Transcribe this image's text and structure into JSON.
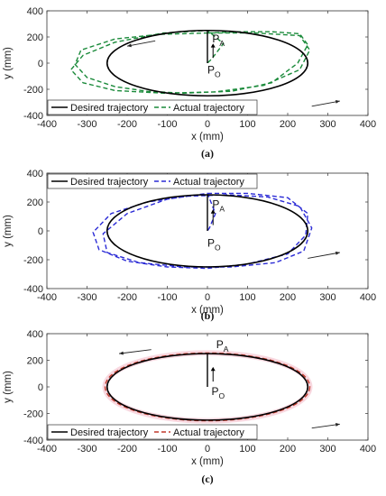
{
  "chart_data": [
    {
      "type": "line",
      "panel": "a",
      "caption": "(a)",
      "xlabel": "x (mm)",
      "ylabel": "y (mm)",
      "xlim": [
        -400,
        400
      ],
      "ylim": [
        -400,
        400
      ],
      "xticks": [
        -400,
        -300,
        -200,
        -100,
        0,
        100,
        200,
        300,
        400
      ],
      "yticks": [
        -400,
        -200,
        0,
        200,
        400
      ],
      "grid": false,
      "legend_position": "bottom",
      "legend": [
        "Desired trajectory",
        "Actual trajectory"
      ],
      "series": [
        {
          "name": "Desired trajectory",
          "color": "#000000",
          "style": "solid",
          "shape": "ellipse",
          "cx": 0,
          "cy": 0,
          "rx": 250,
          "ry": 250
        },
        {
          "name": "Actual trajectory",
          "color": "#1a8a3a",
          "style": "dashed",
          "x": [
            0,
            80,
            160,
            230,
            250,
            225,
            160,
            60,
            -60,
            -150,
            -230,
            -300,
            -330,
            -315,
            -230,
            -120,
            0,
            120,
            230,
            255,
            230,
            140,
            20,
            -110,
            -230,
            -310,
            -340,
            -310,
            -230,
            -110,
            0,
            40,
            10,
            0
          ],
          "y": [
            230,
            240,
            240,
            225,
            140,
            0,
            -150,
            -215,
            -230,
            -215,
            -180,
            -110,
            -10,
            100,
            185,
            220,
            230,
            230,
            210,
            100,
            -50,
            -170,
            -220,
            -230,
            -210,
            -150,
            -50,
            60,
            160,
            230,
            250,
            150,
            30,
            0
          ]
        }
      ],
      "annotations": [
        {
          "text": "P",
          "sub": "A",
          "x": 12,
          "y": 160
        },
        {
          "text": "P",
          "sub": "O",
          "x": 0,
          "y": -80
        }
      ]
    },
    {
      "type": "line",
      "panel": "b",
      "caption": "(b)",
      "xlabel": "x (mm)",
      "ylabel": "y (mm)",
      "xlim": [
        -400,
        400
      ],
      "ylim": [
        -400,
        400
      ],
      "xticks": [
        -400,
        -300,
        -200,
        -100,
        0,
        100,
        200,
        300,
        400
      ],
      "yticks": [
        -400,
        -200,
        0,
        200,
        400
      ],
      "grid": false,
      "legend_position": "top",
      "legend": [
        "Desired trajectory",
        "Actual trajectory"
      ],
      "series": [
        {
          "name": "Desired trajectory",
          "color": "#000000",
          "style": "solid",
          "shape": "ellipse",
          "cx": 0,
          "cy": 0,
          "rx": 250,
          "ry": 250
        },
        {
          "name": "Actual trajectory",
          "color": "#2b2bd6",
          "style": "dashed",
          "x": [
            0,
            100,
            200,
            250,
            245,
            200,
            100,
            0,
            -100,
            -200,
            -270,
            -285,
            -240,
            -150,
            -50,
            50,
            150,
            230,
            260,
            240,
            170,
            60,
            -60,
            -170,
            -250,
            -260,
            -200,
            -100,
            0,
            20,
            5,
            0
          ],
          "y": [
            260,
            260,
            230,
            120,
            -30,
            -160,
            -230,
            -260,
            -250,
            -210,
            -130,
            -10,
            120,
            200,
            240,
            250,
            235,
            170,
            20,
            -140,
            -220,
            -250,
            -250,
            -220,
            -150,
            -20,
            120,
            220,
            260,
            120,
            20,
            0
          ]
        }
      ],
      "annotations": [
        {
          "text": "P",
          "sub": "A",
          "x": 12,
          "y": 160
        },
        {
          "text": "P",
          "sub": "O",
          "x": 0,
          "y": -110
        }
      ]
    },
    {
      "type": "line",
      "panel": "c",
      "caption": "(c)",
      "xlabel": "x (mm)",
      "ylabel": "y (mm)",
      "xlim": [
        -400,
        400
      ],
      "ylim": [
        -400,
        400
      ],
      "xticks": [
        -400,
        -300,
        -200,
        -100,
        0,
        100,
        200,
        300,
        400
      ],
      "yticks": [
        -400,
        -200,
        0,
        200,
        400
      ],
      "grid": false,
      "legend_position": "bottom",
      "legend": [
        "Desired trajectory",
        "Actual trajectory"
      ],
      "series": [
        {
          "name": "Desired trajectory",
          "color": "#000000",
          "style": "solid",
          "shape": "ellipse",
          "cx": 0,
          "cy": 0,
          "rx": 250,
          "ry": 250
        },
        {
          "name": "Actual trajectory",
          "color": "#c0392b",
          "style": "dashed",
          "shape": "ellipse",
          "cx": 0,
          "cy": 0,
          "rx": 255,
          "ry": 255
        }
      ],
      "annotations": [
        {
          "text": "P",
          "sub": "A",
          "x": 22,
          "y": 290
        },
        {
          "text": "P",
          "sub": "O",
          "x": 10,
          "y": -60
        }
      ]
    }
  ]
}
